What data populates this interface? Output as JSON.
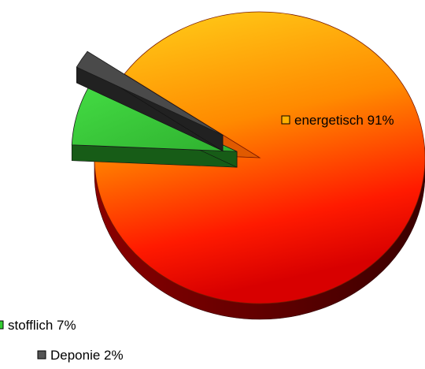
{
  "chart_data": {
    "type": "pie",
    "style": "3d-exploded",
    "series": [
      {
        "name": "energetisch",
        "value": 91,
        "label": "energetisch 91%",
        "color": "#ff8800",
        "legend_swatch": "#ffb000"
      },
      {
        "name": "stofflich",
        "value": 7,
        "label": "stofflich 7%",
        "color": "#33cc33",
        "legend_swatch": "#33cc33"
      },
      {
        "name": "Deponie",
        "value": 2,
        "label": "Deponie 2%",
        "color": "#4a4a4a",
        "legend_swatch": "#555555"
      }
    ]
  }
}
